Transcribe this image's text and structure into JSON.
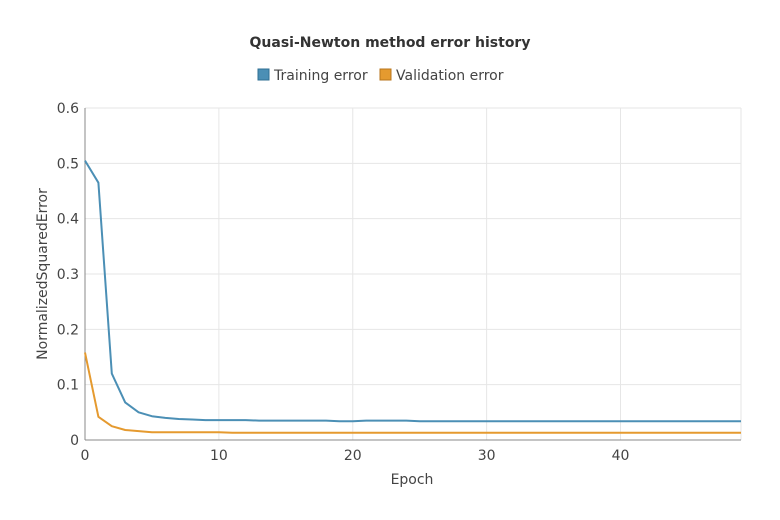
{
  "chart_data": {
    "type": "line",
    "title": "Quasi-Newton method error history",
    "xlabel": "Epoch",
    "ylabel": "NormalizedSquaredError",
    "xlim": [
      0,
      49
    ],
    "ylim": [
      0,
      0.6
    ],
    "x_ticks": [
      0,
      10,
      20,
      30,
      40
    ],
    "y_ticks": [
      0,
      0.1,
      0.2,
      0.3,
      0.4,
      0.5,
      0.6
    ],
    "grid": true,
    "legend_position": "top",
    "x": [
      0,
      1,
      2,
      3,
      4,
      5,
      6,
      7,
      8,
      9,
      10,
      11,
      12,
      13,
      14,
      15,
      16,
      17,
      18,
      19,
      20,
      21,
      22,
      23,
      24,
      25,
      26,
      27,
      28,
      29,
      30,
      31,
      32,
      33,
      34,
      35,
      36,
      37,
      38,
      39,
      40,
      41,
      42,
      43,
      44,
      45,
      46,
      47,
      48,
      49
    ],
    "series": [
      {
        "name": "Training error",
        "color": "#4b8fb5",
        "values": [
          0.505,
          0.465,
          0.12,
          0.068,
          0.05,
          0.043,
          0.04,
          0.038,
          0.037,
          0.036,
          0.036,
          0.036,
          0.036,
          0.035,
          0.035,
          0.035,
          0.035,
          0.035,
          0.035,
          0.034,
          0.034,
          0.035,
          0.035,
          0.035,
          0.035,
          0.034,
          0.034,
          0.034,
          0.034,
          0.034,
          0.034,
          0.034,
          0.034,
          0.034,
          0.034,
          0.034,
          0.034,
          0.034,
          0.034,
          0.034,
          0.034,
          0.034,
          0.034,
          0.034,
          0.034,
          0.034,
          0.034,
          0.034,
          0.034,
          0.034
        ]
      },
      {
        "name": "Validation error",
        "color": "#e59a2f",
        "values": [
          0.158,
          0.042,
          0.025,
          0.018,
          0.016,
          0.014,
          0.014,
          0.014,
          0.014,
          0.014,
          0.014,
          0.013,
          0.013,
          0.013,
          0.013,
          0.013,
          0.013,
          0.013,
          0.013,
          0.013,
          0.013,
          0.013,
          0.013,
          0.013,
          0.013,
          0.013,
          0.013,
          0.013,
          0.013,
          0.013,
          0.013,
          0.013,
          0.013,
          0.013,
          0.013,
          0.013,
          0.013,
          0.013,
          0.013,
          0.013,
          0.013,
          0.013,
          0.013,
          0.013,
          0.013,
          0.013,
          0.013,
          0.013,
          0.013,
          0.013
        ]
      }
    ]
  }
}
